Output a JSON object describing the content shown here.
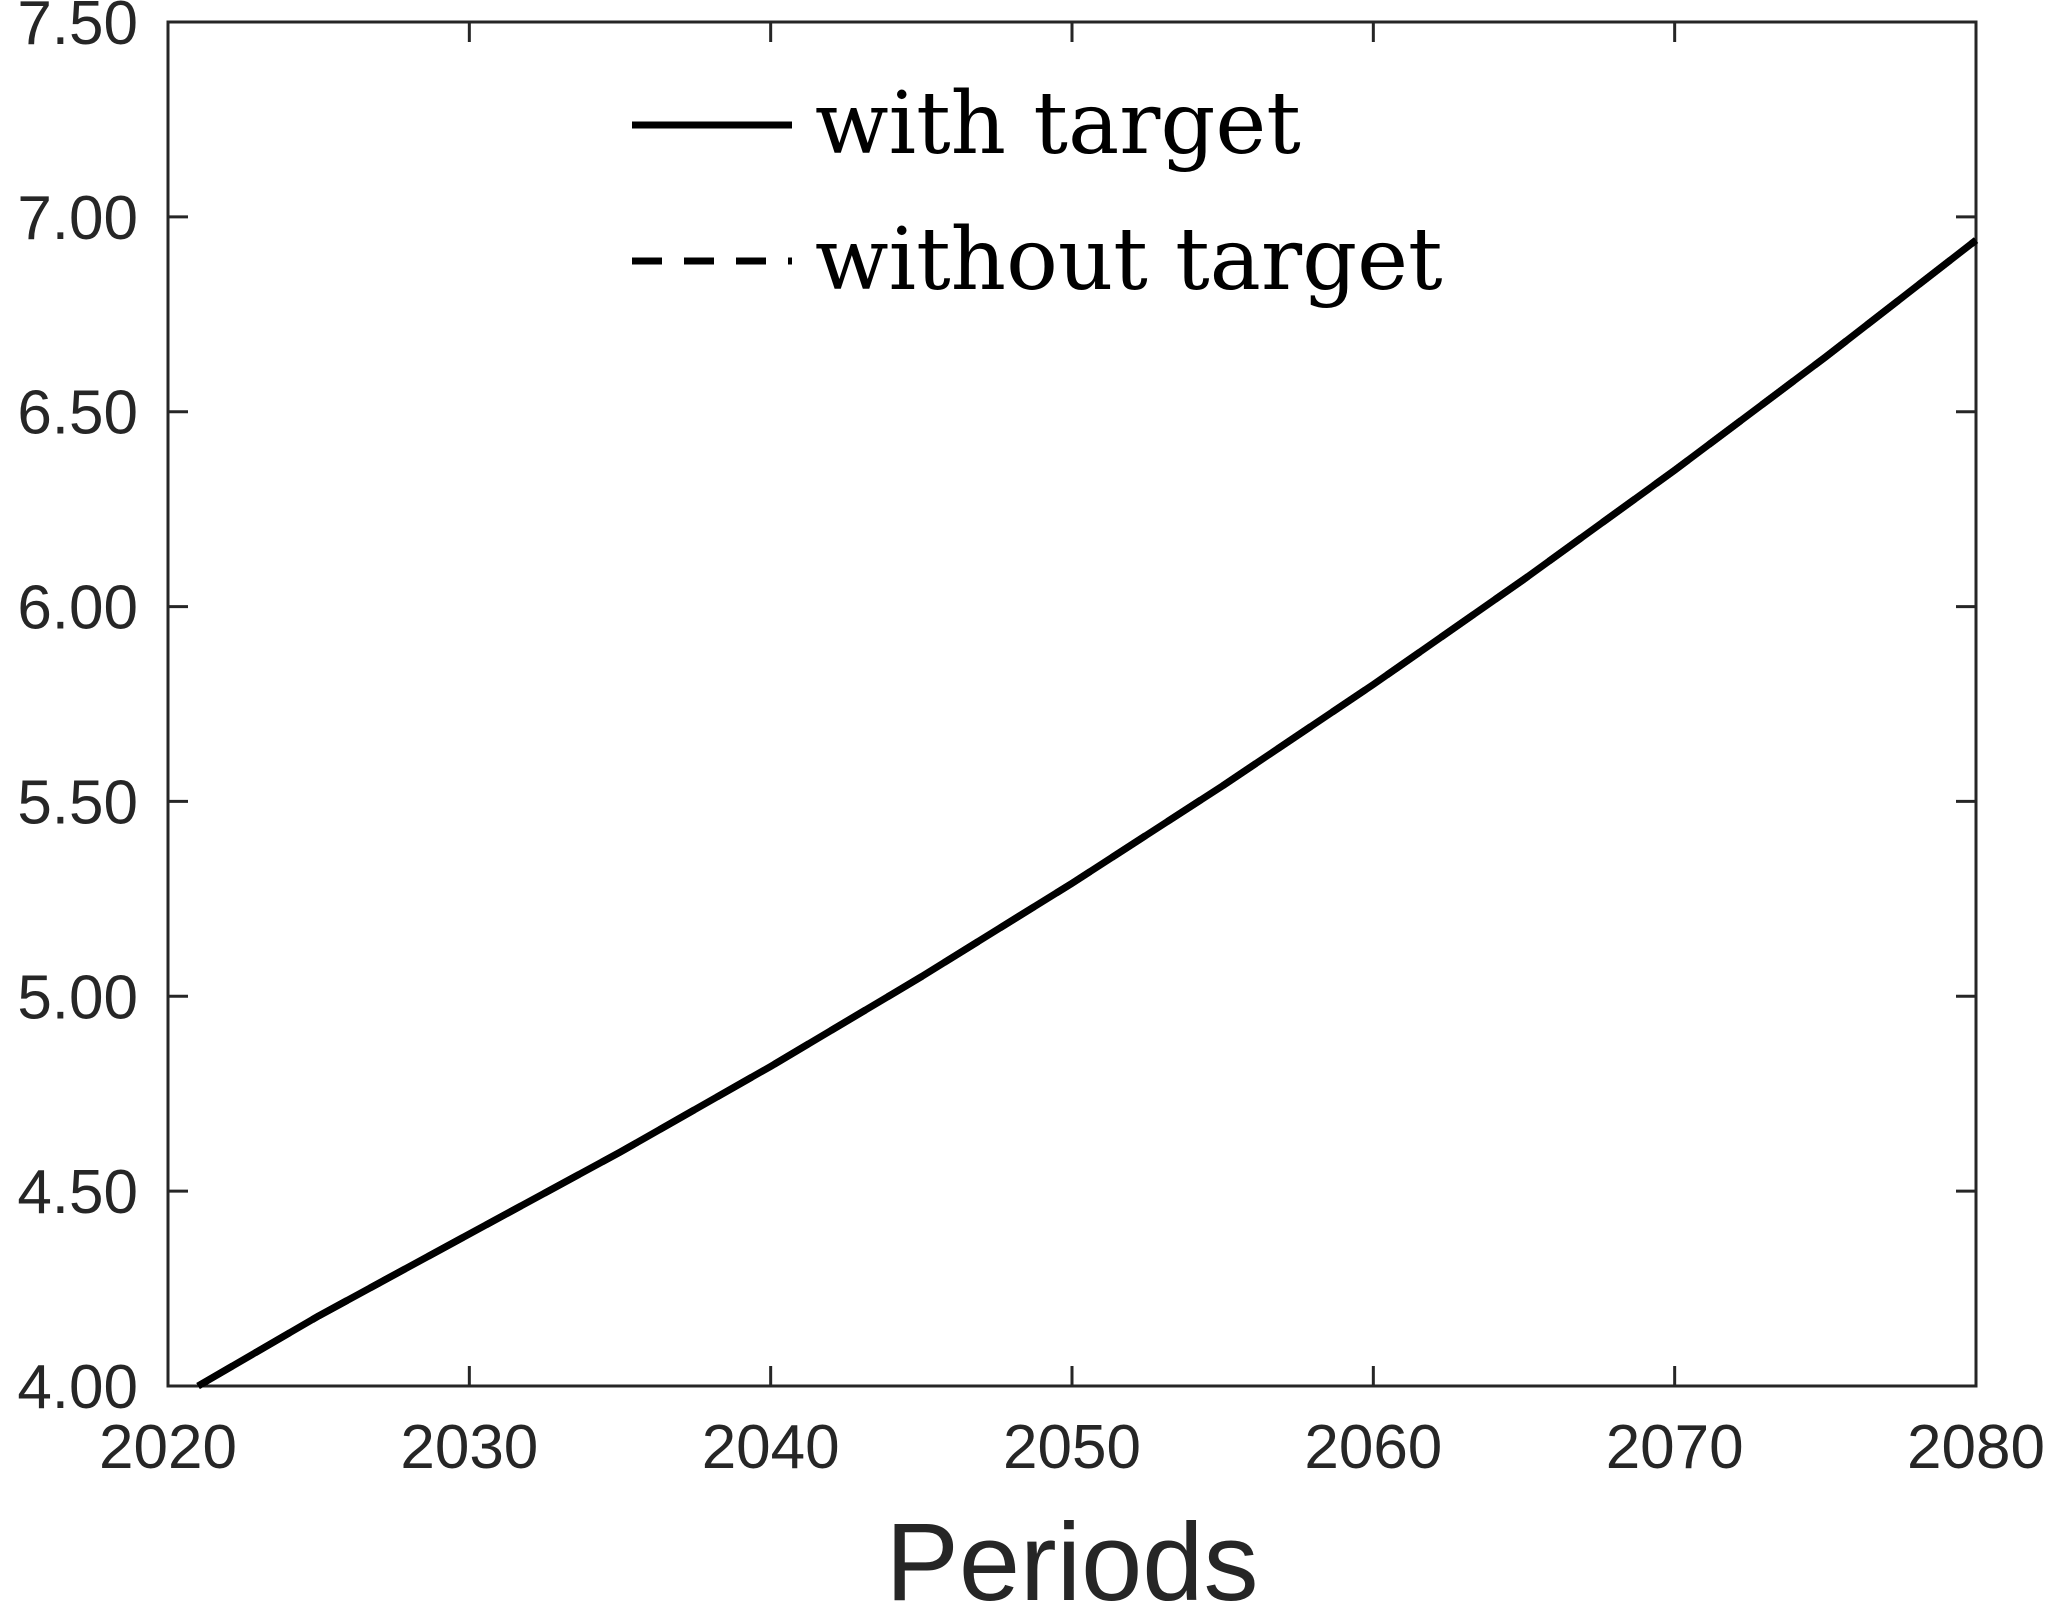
{
  "chart_data": {
    "type": "line",
    "title": "",
    "xlabel": "Periods",
    "ylabel": "",
    "xlim": [
      2020,
      2080
    ],
    "ylim": [
      4.0,
      7.5
    ],
    "x_ticks": [
      "2020",
      "2030",
      "2040",
      "2050",
      "2060",
      "2070",
      "2080"
    ],
    "y_ticks": [
      "4.00",
      "4.50",
      "5.00",
      "5.50",
      "6.00",
      "6.50",
      "7.00",
      "7.50"
    ],
    "grid": false,
    "legend_position": "top-center",
    "series": [
      {
        "name": "with target",
        "style": "solid",
        "color": "#000000",
        "x": [
          2021,
          2025,
          2030,
          2035,
          2040,
          2045,
          2050,
          2055,
          2060,
          2065,
          2070,
          2075,
          2080
        ],
        "y": [
          4.0,
          4.18,
          4.39,
          4.6,
          4.82,
          5.05,
          5.29,
          5.54,
          5.8,
          6.07,
          6.35,
          6.64,
          6.94
        ]
      },
      {
        "name": "without target",
        "style": "dashed",
        "color": "#000000",
        "x": [
          2021,
          2025,
          2030,
          2035,
          2040,
          2045,
          2050,
          2055,
          2060,
          2065,
          2070,
          2075,
          2080
        ],
        "y": [
          4.0,
          4.18,
          4.39,
          4.6,
          4.82,
          5.05,
          5.29,
          5.54,
          5.8,
          6.07,
          6.35,
          6.64,
          6.94
        ]
      }
    ]
  }
}
